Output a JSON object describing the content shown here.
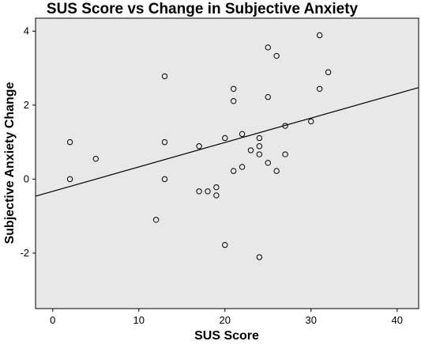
{
  "chart_data": {
    "type": "scatter",
    "title": "SUS Score vs Change in Subjective Anxiety",
    "xlabel": "SUS Score",
    "ylabel": "Subjective Anxiety Change",
    "xlim": [
      -2,
      42.5
    ],
    "ylim": [
      -3.5,
      4.35
    ],
    "xticks": [
      0,
      10,
      20,
      30,
      40
    ],
    "yticks": [
      -2,
      0,
      2,
      4
    ],
    "grid": false,
    "legend": "none",
    "colors": {
      "plot_background": "#e8e8e8",
      "marker_edge": "#000000",
      "fit_line": "#000000"
    },
    "fit_line": {
      "intercept": -0.33,
      "slope": 0.066
    },
    "points": [
      {
        "x": 2,
        "y": 1.0
      },
      {
        "x": 2,
        "y": 0.0
      },
      {
        "x": 5,
        "y": 0.55
      },
      {
        "x": 12,
        "y": -1.1
      },
      {
        "x": 13,
        "y": 2.78
      },
      {
        "x": 13,
        "y": 1.0
      },
      {
        "x": 13,
        "y": 0.0
      },
      {
        "x": 17,
        "y": 0.89
      },
      {
        "x": 17,
        "y": -0.33
      },
      {
        "x": 18,
        "y": -0.33
      },
      {
        "x": 19,
        "y": -0.22
      },
      {
        "x": 19,
        "y": -0.44
      },
      {
        "x": 20,
        "y": 1.11
      },
      {
        "x": 20,
        "y": -1.78
      },
      {
        "x": 21,
        "y": 2.44
      },
      {
        "x": 21,
        "y": 2.11
      },
      {
        "x": 21,
        "y": 0.22
      },
      {
        "x": 22,
        "y": 1.22
      },
      {
        "x": 22,
        "y": 0.33
      },
      {
        "x": 23,
        "y": 0.78
      },
      {
        "x": 24,
        "y": 1.11
      },
      {
        "x": 24,
        "y": 0.89
      },
      {
        "x": 24,
        "y": 0.67
      },
      {
        "x": 24,
        "y": -2.11
      },
      {
        "x": 25,
        "y": 3.56
      },
      {
        "x": 25,
        "y": 2.22
      },
      {
        "x": 25,
        "y": 0.44
      },
      {
        "x": 26,
        "y": 3.33
      },
      {
        "x": 26,
        "y": 0.22
      },
      {
        "x": 27,
        "y": 1.44
      },
      {
        "x": 27,
        "y": 0.67
      },
      {
        "x": 30,
        "y": 1.56
      },
      {
        "x": 31,
        "y": 3.89
      },
      {
        "x": 31,
        "y": 2.44
      },
      {
        "x": 32,
        "y": 2.89
      }
    ]
  }
}
